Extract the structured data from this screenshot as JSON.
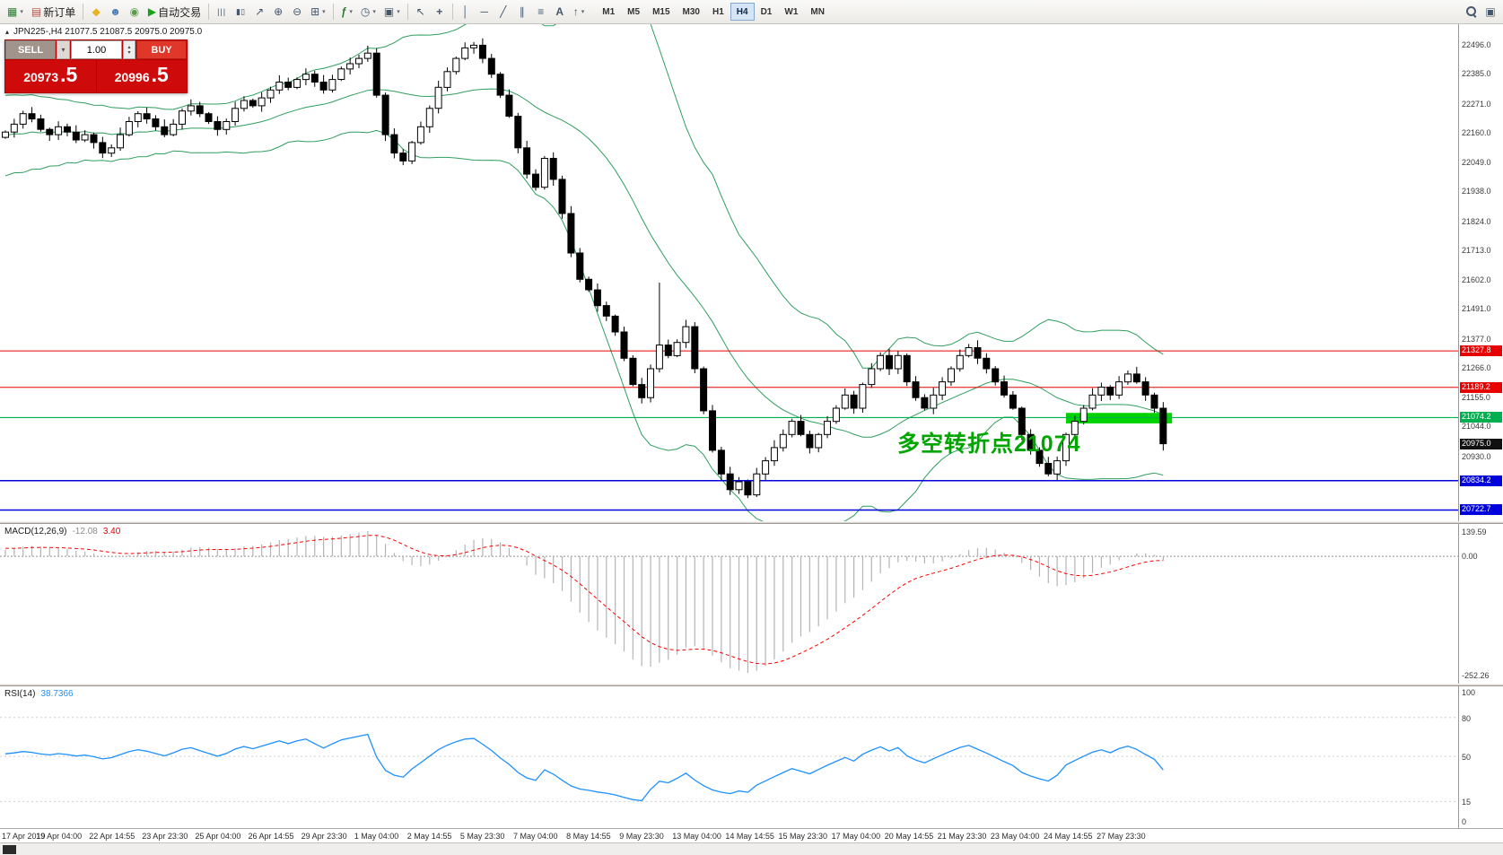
{
  "toolbar": {
    "new_order_label": "新订单",
    "auto_trading_label": "自动交易",
    "timeframes": [
      "M1",
      "M5",
      "M15",
      "M30",
      "H1",
      "H4",
      "D1",
      "W1",
      "MN"
    ],
    "active_timeframe": "H4"
  },
  "chart": {
    "symbol_info": "JPN225-,H4  21077.5 21087.5 20975.0 20975.0",
    "annotation": "多空转折点21074",
    "levels": [
      {
        "label": "21327.8",
        "color": "#e60000"
      },
      {
        "label": "21189.2",
        "color": "#e60000"
      },
      {
        "label": "21074.2",
        "color": "#00b050"
      },
      {
        "label": "20834.2",
        "color": "#0000dd"
      },
      {
        "label": "20722.7",
        "color": "#0000dd"
      }
    ],
    "current_price": {
      "label": "20975.0",
      "color": "#111111"
    },
    "highlight_rect": {
      "from_candle": 120,
      "to_candle": 132,
      "price_top": 21092,
      "price_bottom": 21052,
      "color": "#00d300"
    }
  },
  "order_panel": {
    "sell_label": "SELL",
    "buy_label": "BUY",
    "volume": "1.00",
    "sell_price_main": "20973",
    "sell_price_frac": ".5",
    "buy_price_main": "20996",
    "buy_price_frac": ".5"
  },
  "chart_data": {
    "type": "candlestick",
    "symbol": "JPN225-",
    "timeframe": "H4",
    "open_first": 22140,
    "closes": [
      22160,
      22190,
      22230,
      22210,
      22170,
      22150,
      22180,
      22160,
      22130,
      22150,
      22120,
      22080,
      22100,
      22150,
      22200,
      22230,
      22210,
      22180,
      22150,
      22190,
      22240,
      22260,
      22230,
      22200,
      22170,
      22200,
      22250,
      22280,
      22260,
      22290,
      22320,
      22350,
      22330,
      22360,
      22380,
      22350,
      22320,
      22360,
      22400,
      22420,
      22440,
      22460,
      22300,
      22150,
      22080,
      22050,
      22120,
      22180,
      22250,
      22330,
      22390,
      22440,
      22480,
      22490,
      22440,
      22380,
      22300,
      22220,
      22100,
      22000,
      21950,
      22060,
      21980,
      21850,
      21700,
      21600,
      21560,
      21500,
      21460,
      21400,
      21300,
      21200,
      21150,
      21260,
      21350,
      21310,
      21360,
      21420,
      21260,
      21100,
      20950,
      20860,
      20800,
      20830,
      20780,
      20860,
      20910,
      20960,
      21010,
      21060,
      21010,
      20960,
      21010,
      21060,
      21110,
      21160,
      21110,
      21200,
      21260,
      21310,
      21260,
      21310,
      21210,
      21150,
      21110,
      21160,
      21210,
      21260,
      21310,
      21340,
      21300,
      21260,
      21210,
      21160,
      21110,
      21010,
      20950,
      20900,
      20860,
      20910,
      21010,
      21060,
      21110,
      21160,
      21190,
      21160,
      21210,
      21240,
      21210,
      21160,
      21110,
      20975
    ],
    "candles_per_x_label": 6,
    "x_labels": [
      "17 Apr 2019",
      "19 Apr 04:00",
      "22 Apr 14:55",
      "23 Apr 23:30",
      "25 Apr 04:00",
      "26 Apr 14:55",
      "29 Apr 23:30",
      "1 May 04:00",
      "2 May 14:55",
      "5 May 23:30",
      "7 May 04:00",
      "8 May 14:55",
      "9 May 23:30",
      "13 May 04:00",
      "14 May 14:55",
      "15 May 23:30",
      "17 May 04:00",
      "20 May 14:55",
      "21 May 23:30",
      "23 May 04:00",
      "24 May 14:55",
      "27 May 23:30"
    ],
    "y_ticks": [
      "22496.0",
      "22385.0",
      "22271.0",
      "22160.0",
      "22049.0",
      "21938.0",
      "21824.0",
      "21713.0",
      "21602.0",
      "21491.0",
      "21377.0",
      "21266.0",
      "21155.0",
      "21044.0",
      "20930.0"
    ],
    "y_range": [
      20680,
      22570
    ],
    "overlays": {
      "bollinger_period": 20,
      "bollinger_deviation": 2,
      "bollinger_color": "#2f9e5f"
    }
  },
  "macd_panel": {
    "name": "MACD(12,26,9)",
    "value": "-12.08",
    "signal_value": "3.40",
    "axis_labels": [
      "139.59",
      "0.00",
      "-252.26"
    ],
    "params": [
      12,
      26,
      9
    ]
  },
  "rsi_panel": {
    "name": "RSI(14)",
    "value": "38.7366",
    "period": 14,
    "axis_labels": [
      "100",
      "80",
      "50",
      "15",
      "0"
    ]
  }
}
